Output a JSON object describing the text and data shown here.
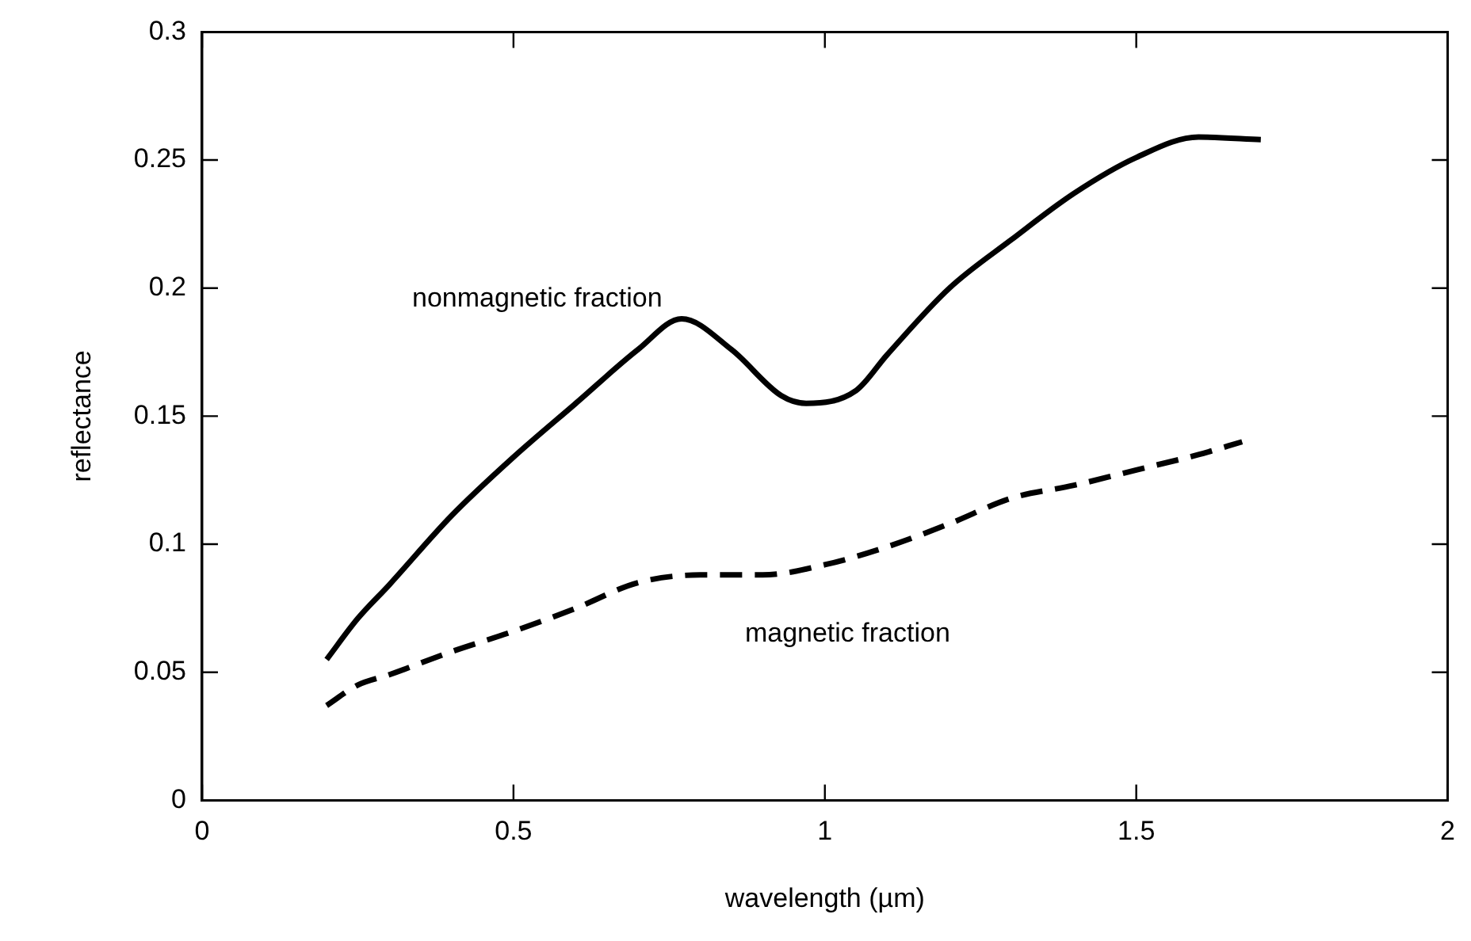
{
  "chart_data": {
    "type": "line",
    "xlabel": "wavelength (µm)",
    "ylabel": "reflectance",
    "xlim": [
      0,
      2
    ],
    "xticks": [
      0,
      0.5,
      1,
      1.5,
      2
    ],
    "ylim": [
      0,
      0.3
    ],
    "yticks": [
      0,
      0.05,
      0.1,
      0.15,
      0.2,
      0.25,
      0.3
    ],
    "grid": false,
    "legend": false,
    "marker": "none",
    "series": [
      {
        "name": "nonmagnetic fraction",
        "color": "#000000",
        "line_style": "solid",
        "x": [
          0.2,
          0.25,
          0.3,
          0.4,
          0.5,
          0.6,
          0.7,
          0.77,
          0.85,
          0.93,
          0.97,
          1.05,
          1.1,
          1.2,
          1.3,
          1.4,
          1.5,
          1.6,
          1.7
        ],
        "values": [
          0.055,
          0.071,
          0.084,
          0.111,
          0.134,
          0.155,
          0.176,
          0.188,
          0.176,
          0.158,
          0.155,
          0.16,
          0.174,
          0.2,
          0.219,
          0.237,
          0.251,
          0.259,
          0.258
        ]
      },
      {
        "name": "magnetic fraction",
        "color": "#000000",
        "line_style": "dashed",
        "x": [
          0.2,
          0.25,
          0.3,
          0.4,
          0.5,
          0.6,
          0.7,
          0.8,
          0.9,
          1.0,
          1.1,
          1.2,
          1.3,
          1.4,
          1.5,
          1.6,
          1.67
        ],
        "values": [
          0.037,
          0.045,
          0.049,
          0.058,
          0.066,
          0.075,
          0.085,
          0.088,
          0.088,
          0.092,
          0.099,
          0.108,
          0.118,
          0.123,
          0.129,
          0.135,
          0.14
        ]
      }
    ]
  }
}
